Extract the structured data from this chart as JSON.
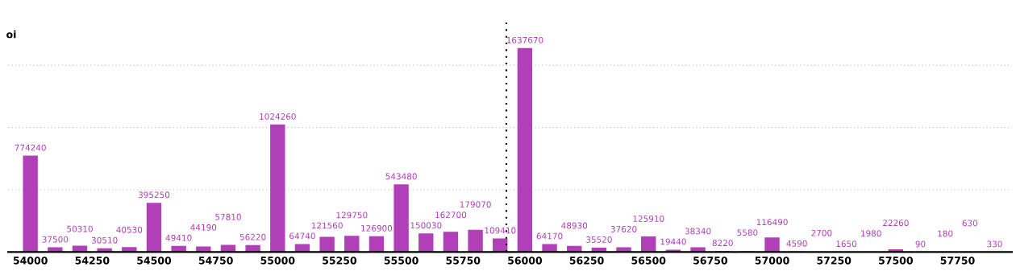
{
  "chart_data": {
    "type": "bar",
    "ylabel": "oi",
    "x": [
      54000,
      54100,
      54200,
      54300,
      54400,
      54500,
      54600,
      54700,
      54800,
      54900,
      55000,
      55100,
      55200,
      55300,
      55400,
      55500,
      55600,
      55700,
      55800,
      55900,
      56000,
      56100,
      56200,
      56300,
      56400,
      56500,
      56600,
      56700,
      56800,
      56900,
      57000,
      57100,
      57200,
      57300,
      57400,
      57500,
      57600,
      57700,
      57800,
      57900
    ],
    "values": [
      774240,
      37500,
      50310,
      30510,
      40530,
      395250,
      49410,
      44190,
      57810,
      56220,
      1024260,
      64740,
      121560,
      129750,
      126900,
      543480,
      150030,
      162700,
      179070,
      109410,
      1637670,
      64170,
      48930,
      35520,
      37620,
      125910,
      19440,
      38340,
      8220,
      5580,
      116490,
      4590,
      2700,
      1650,
      1980,
      22260,
      90,
      180,
      630,
      330
    ],
    "color": "#b03fb8",
    "data_labels": true,
    "xlim": [
      53910,
      57970
    ],
    "xticks": [
      54000,
      54250,
      54500,
      54750,
      55000,
      55250,
      55500,
      55750,
      56000,
      56250,
      56500,
      56750,
      57000,
      57250,
      57500,
      57750
    ],
    "ylim": [
      0,
      1850000
    ],
    "yticks": [
      {
        "value": 500000,
        "label": null
      },
      {
        "value": 1000000,
        "label": null
      },
      {
        "value": 1500000,
        "label": null
      }
    ],
    "grid": "y",
    "ref_lines": [
      {
        "axis": "x",
        "value": 55925,
        "color": "#000000",
        "line_style": "dotted"
      }
    ]
  }
}
